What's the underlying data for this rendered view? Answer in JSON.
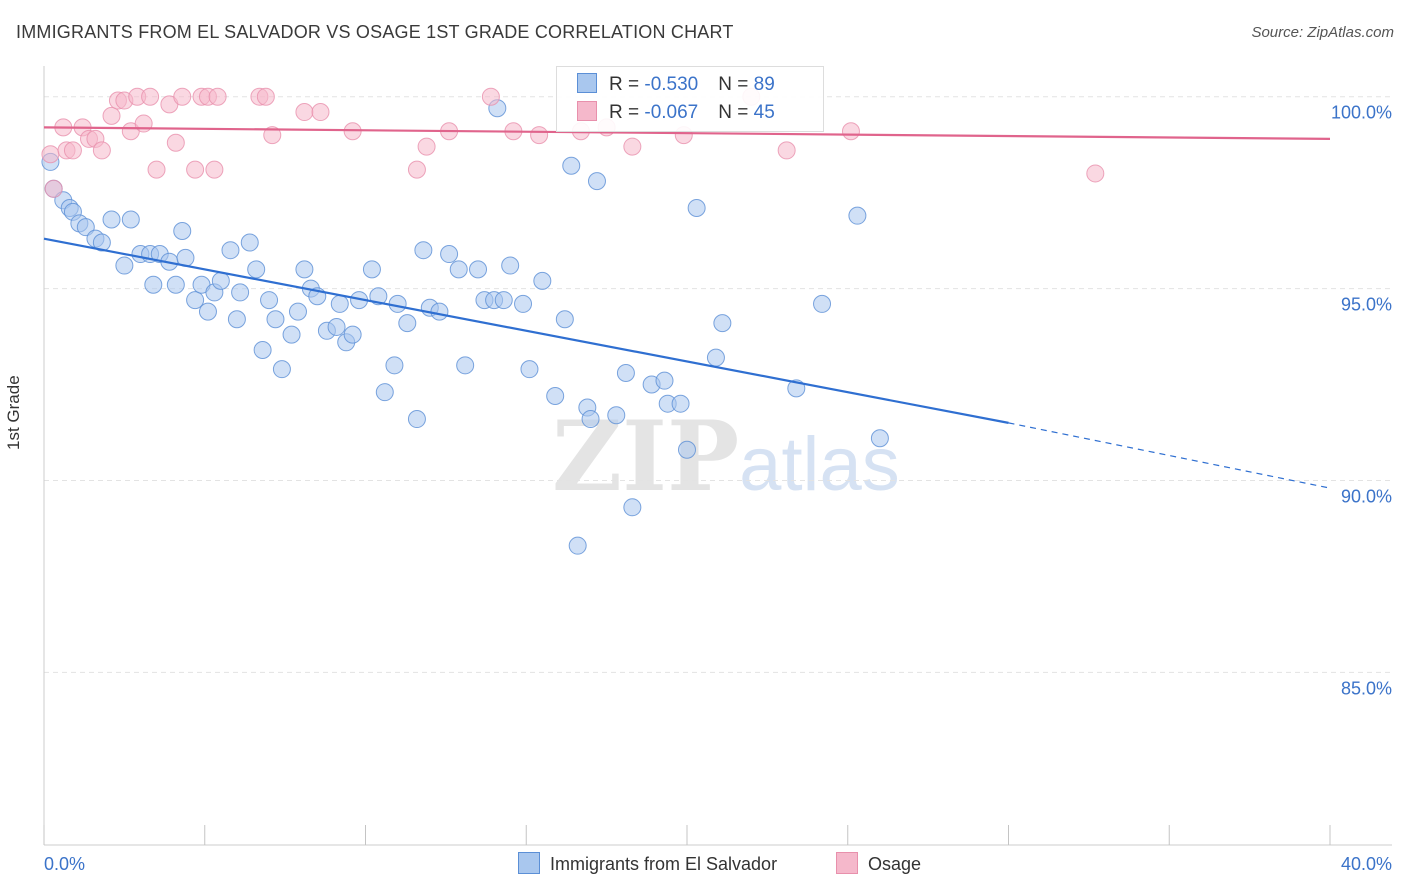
{
  "title": "IMMIGRANTS FROM EL SALVADOR VS OSAGE 1ST GRADE CORRELATION CHART",
  "source": "Source: ZipAtlas.com",
  "watermark": {
    "part1": "ZIP",
    "part2": "atlas"
  },
  "stats": [
    {
      "r_label": "R = ",
      "r_value": "-0.530",
      "n_label": "N = ",
      "n_value": "89"
    },
    {
      "r_label": "R = ",
      "r_value": "-0.067",
      "n_label": "N = ",
      "n_value": "45"
    }
  ],
  "colors": {
    "blue_fill": "#a9c7ee",
    "blue_stroke": "#5b8fd6",
    "blue_line": "#2f6fd1",
    "pink_fill": "#f5b8cb",
    "pink_stroke": "#e890ac",
    "pink_line": "#e0648c",
    "grid": "#e3e3e3",
    "tick_label": "#3b73c9"
  },
  "chart_data": {
    "type": "scatter",
    "title": "IMMIGRANTS FROM EL SALVADOR VS OSAGE 1ST GRADE CORRELATION CHART",
    "xlabel": "",
    "ylabel": "1st Grade",
    "xlim": [
      0,
      40
    ],
    "ylim": [
      80.5,
      100.8
    ],
    "x_tick_labels": [
      "0.0%",
      "40.0%"
    ],
    "y_ticks": [
      {
        "value": 100,
        "label": "100.0%"
      },
      {
        "value": 95,
        "label": "95.0%"
      },
      {
        "value": 90,
        "label": "90.0%"
      },
      {
        "value": 85,
        "label": "85.0%"
      }
    ],
    "series": [
      {
        "name": "Immigrants from El Salvador",
        "color": "blue",
        "trend": {
          "x1": 0,
          "y1": 96.3,
          "x2": 30,
          "y2": 91.5,
          "dash_to_x": 40,
          "dash_to_y": 89.8
        },
        "points": [
          [
            0.2,
            98.3
          ],
          [
            0.3,
            97.6
          ],
          [
            0.6,
            97.3
          ],
          [
            0.8,
            97.1
          ],
          [
            0.9,
            97.0
          ],
          [
            1.1,
            96.7
          ],
          [
            1.3,
            96.6
          ],
          [
            1.6,
            96.3
          ],
          [
            1.8,
            96.2
          ],
          [
            2.1,
            96.8
          ],
          [
            2.5,
            95.6
          ],
          [
            2.7,
            96.8
          ],
          [
            3.0,
            95.9
          ],
          [
            3.3,
            95.9
          ],
          [
            3.4,
            95.1
          ],
          [
            3.6,
            95.9
          ],
          [
            3.9,
            95.7
          ],
          [
            4.1,
            95.1
          ],
          [
            4.3,
            96.5
          ],
          [
            4.4,
            95.8
          ],
          [
            4.7,
            94.7
          ],
          [
            4.9,
            95.1
          ],
          [
            5.1,
            94.4
          ],
          [
            5.3,
            94.9
          ],
          [
            5.5,
            95.2
          ],
          [
            5.8,
            96.0
          ],
          [
            6.0,
            94.2
          ],
          [
            6.1,
            94.9
          ],
          [
            6.4,
            96.2
          ],
          [
            6.6,
            95.5
          ],
          [
            6.8,
            93.4
          ],
          [
            7.0,
            94.7
          ],
          [
            7.2,
            94.2
          ],
          [
            7.4,
            92.9
          ],
          [
            7.7,
            93.8
          ],
          [
            7.9,
            94.4
          ],
          [
            8.1,
            95.5
          ],
          [
            8.3,
            95.0
          ],
          [
            8.5,
            94.8
          ],
          [
            8.8,
            93.9
          ],
          [
            9.1,
            94.0
          ],
          [
            9.2,
            94.6
          ],
          [
            9.4,
            93.6
          ],
          [
            9.6,
            93.8
          ],
          [
            9.8,
            94.7
          ],
          [
            10.2,
            95.5
          ],
          [
            10.4,
            94.8
          ],
          [
            10.6,
            92.3
          ],
          [
            10.9,
            93.0
          ],
          [
            11.0,
            94.6
          ],
          [
            11.3,
            94.1
          ],
          [
            11.6,
            91.6
          ],
          [
            11.8,
            96.0
          ],
          [
            12.0,
            94.5
          ],
          [
            12.3,
            94.4
          ],
          [
            12.6,
            95.9
          ],
          [
            12.9,
            95.5
          ],
          [
            13.1,
            93.0
          ],
          [
            13.5,
            95.5
          ],
          [
            13.7,
            94.7
          ],
          [
            14.0,
            94.7
          ],
          [
            14.1,
            99.7
          ],
          [
            14.3,
            94.7
          ],
          [
            14.5,
            95.6
          ],
          [
            14.9,
            94.6
          ],
          [
            15.1,
            92.9
          ],
          [
            15.5,
            95.2
          ],
          [
            15.9,
            92.2
          ],
          [
            16.2,
            94.2
          ],
          [
            16.4,
            98.2
          ],
          [
            16.6,
            88.3
          ],
          [
            16.9,
            91.9
          ],
          [
            17.0,
            91.6
          ],
          [
            17.2,
            97.8
          ],
          [
            17.8,
            91.7
          ],
          [
            18.1,
            92.8
          ],
          [
            18.3,
            89.3
          ],
          [
            18.9,
            92.5
          ],
          [
            19.3,
            92.6
          ],
          [
            19.4,
            92.0
          ],
          [
            19.8,
            92.0
          ],
          [
            20.0,
            90.8
          ],
          [
            20.3,
            97.1
          ],
          [
            20.9,
            93.2
          ],
          [
            21.1,
            94.1
          ],
          [
            23.4,
            92.4
          ],
          [
            24.2,
            94.6
          ],
          [
            25.3,
            96.9
          ],
          [
            26.0,
            91.1
          ]
        ]
      },
      {
        "name": "Osage",
        "color": "pink",
        "trend": {
          "x1": 0,
          "y1": 99.2,
          "x2": 40,
          "y2": 98.9
        },
        "points": [
          [
            0.2,
            98.5
          ],
          [
            0.3,
            97.6
          ],
          [
            0.6,
            99.2
          ],
          [
            0.7,
            98.6
          ],
          [
            0.9,
            98.6
          ],
          [
            1.2,
            99.2
          ],
          [
            1.4,
            98.9
          ],
          [
            1.6,
            98.9
          ],
          [
            1.8,
            98.6
          ],
          [
            2.1,
            99.5
          ],
          [
            2.3,
            99.9
          ],
          [
            2.5,
            99.9
          ],
          [
            2.7,
            99.1
          ],
          [
            2.9,
            100.0
          ],
          [
            3.1,
            99.3
          ],
          [
            3.3,
            100.0
          ],
          [
            3.5,
            98.1
          ],
          [
            3.9,
            99.8
          ],
          [
            4.1,
            98.8
          ],
          [
            4.3,
            100.0
          ],
          [
            4.7,
            98.1
          ],
          [
            4.9,
            100.0
          ],
          [
            5.1,
            100.0
          ],
          [
            5.3,
            98.1
          ],
          [
            5.4,
            100.0
          ],
          [
            6.7,
            100.0
          ],
          [
            6.9,
            100.0
          ],
          [
            7.1,
            99.0
          ],
          [
            8.1,
            99.6
          ],
          [
            8.6,
            99.6
          ],
          [
            9.6,
            99.1
          ],
          [
            11.6,
            98.1
          ],
          [
            11.9,
            98.7
          ],
          [
            12.6,
            99.1
          ],
          [
            13.9,
            100.0
          ],
          [
            14.6,
            99.1
          ],
          [
            15.4,
            99.0
          ],
          [
            16.7,
            99.1
          ],
          [
            17.5,
            99.2
          ],
          [
            18.3,
            98.7
          ],
          [
            19.9,
            99.0
          ],
          [
            22.0,
            100.0
          ],
          [
            23.1,
            98.6
          ],
          [
            25.1,
            99.1
          ],
          [
            32.7,
            98.0
          ]
        ]
      }
    ]
  }
}
